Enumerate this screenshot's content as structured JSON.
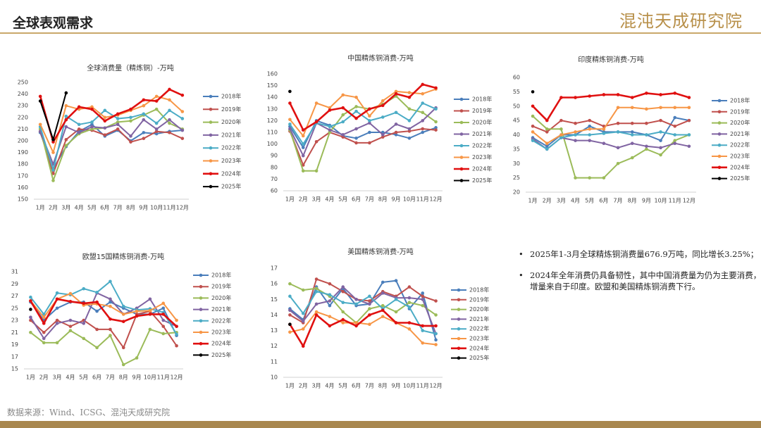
{
  "header": {
    "title": "全球表观需求",
    "logo": "混沌天成研究院"
  },
  "notes": [
    "2025年1-3月全球精炼铜消费量676.9万吨，同比增长3.25%；",
    "2024年全年消费仍具备韧性，其中中国消费量为仍为主要消费，增量来自于印度。欧盟和美国精炼铜消费下行。"
  ],
  "source": "数据来源：Wind、ICSG、混沌天成研究院",
  "chart_data": [
    {
      "type": "line",
      "title": "全球消费量（精炼铜）-万吨",
      "grid": false,
      "categories": [
        "1月",
        "2月",
        "3月",
        "4月",
        "5月",
        "6月",
        "7月",
        "8月",
        "9月",
        "10月",
        "11月",
        "12月"
      ],
      "ylim": [
        150,
        250
      ],
      "yticks": [
        150,
        160,
        170,
        180,
        190,
        200,
        210,
        220,
        230,
        240,
        250
      ],
      "series": [
        {
          "name": "2018年",
          "color": "#4a7ebb",
          "values": [
            207,
            176,
            195,
            208,
            214,
            204,
            209,
            200,
            207,
            206,
            208,
            209
          ]
        },
        {
          "name": "2019年",
          "color": "#c0504d",
          "values": [
            208,
            172,
            201,
            210,
            209,
            205,
            210,
            199,
            202,
            208,
            207,
            202
          ]
        },
        {
          "name": "2020年",
          "color": "#9bbb59",
          "values": [
            210,
            166,
            196,
            206,
            210,
            211,
            216,
            217,
            222,
            227,
            215,
            210
          ]
        },
        {
          "name": "2021年",
          "color": "#8064a2",
          "values": [
            208,
            180,
            212,
            207,
            212,
            211,
            214,
            204,
            218,
            210,
            218,
            209
          ]
        },
        {
          "name": "2022年",
          "color": "#4bacc6",
          "values": [
            212,
            175,
            221,
            214,
            216,
            226,
            219,
            220,
            223,
            215,
            226,
            219
          ]
        },
        {
          "name": "2023年",
          "color": "#f79646",
          "values": [
            214,
            190,
            230,
            227,
            229,
            220,
            222,
            226,
            230,
            238,
            235,
            225
          ]
        },
        {
          "name": "2024年",
          "color": "#e01010",
          "values": [
            238,
            199,
            218,
            229,
            227,
            217,
            223,
            227,
            235,
            234,
            244,
            239
          ]
        },
        {
          "name": "2025年",
          "color": "#000000",
          "values": [
            234,
            201,
            241,
            null,
            null,
            null,
            null,
            null,
            null,
            null,
            null,
            null
          ]
        }
      ]
    },
    {
      "type": "line",
      "title": "中国精炼铜消费-万吨",
      "grid": false,
      "categories": [
        "1月",
        "2月",
        "3月",
        "4月",
        "5月",
        "6月",
        "7月",
        "8月",
        "9月",
        "10月",
        "11月",
        "12月"
      ],
      "ylim": [
        60,
        160
      ],
      "yticks": [
        60,
        70,
        80,
        90,
        100,
        110,
        120,
        130,
        140,
        150,
        160
      ],
      "series": [
        {
          "name": "2018年",
          "color": "#4a7ebb",
          "values": [
            115,
            97,
            120,
            116,
            107,
            105,
            110,
            110,
            108,
            105,
            110,
            114
          ]
        },
        {
          "name": "2019年",
          "color": "#c0504d",
          "values": [
            111,
            82,
            102,
            110,
            106,
            101,
            101,
            106,
            110,
            111,
            113,
            112
          ]
        },
        {
          "name": "2020年",
          "color": "#9bbb59",
          "values": [
            112,
            77,
            77,
            110,
            125,
            132,
            130,
            134,
            141,
            130,
            127,
            119
          ]
        },
        {
          "name": "2021年",
          "color": "#8064a2",
          "values": [
            113,
            90,
            118,
            112,
            108,
            113,
            118,
            108,
            117,
            113,
            120,
            131
          ]
        },
        {
          "name": "2022年",
          "color": "#4bacc6",
          "values": [
            117,
            100,
            118,
            115,
            119,
            128,
            120,
            123,
            127,
            120,
            135,
            130
          ]
        },
        {
          "name": "2023年",
          "color": "#f79646",
          "values": [
            121,
            107,
            135,
            131,
            142,
            140,
            124,
            137,
            145,
            144,
            143,
            147
          ]
        },
        {
          "name": "2024年",
          "color": "#e01010",
          "values": [
            135,
            112,
            119,
            129,
            131,
            122,
            130,
            133,
            143,
            140,
            151,
            148
          ]
        },
        {
          "name": "2025年",
          "color": "#000000",
          "values": [
            145,
            null,
            null,
            null,
            null,
            null,
            null,
            null,
            null,
            null,
            null,
            null
          ]
        }
      ]
    },
    {
      "type": "line",
      "title": "印度精炼铜消费-万吨",
      "grid": false,
      "categories": [
        "1月",
        "2月",
        "3月",
        "4月",
        "5月",
        "6月",
        "7月",
        "8月",
        "9月",
        "10月",
        "11月",
        "12月"
      ],
      "ylim": [
        20,
        60
      ],
      "yticks": [
        20,
        25,
        30,
        35,
        40,
        45,
        50,
        55,
        60
      ],
      "series": [
        {
          "name": "2018年",
          "color": "#4a7ebb",
          "values": [
            39,
            36,
            40,
            40,
            43,
            41,
            41,
            41,
            40,
            38,
            46,
            45
          ]
        },
        {
          "name": "2019年",
          "color": "#c0504d",
          "values": [
            43,
            41,
            45,
            44,
            45,
            43,
            44,
            44,
            44,
            45,
            43,
            45
          ]
        },
        {
          "name": "2020年",
          "color": "#9bbb59",
          "values": [
            46.5,
            42,
            42,
            25,
            25,
            25,
            30,
            32,
            35,
            33,
            38,
            40
          ]
        },
        {
          "name": "2021年",
          "color": "#8064a2",
          "values": [
            38.5,
            35,
            39,
            38,
            38,
            37,
            35.5,
            37,
            36,
            35.5,
            37,
            36
          ]
        },
        {
          "name": "2022年",
          "color": "#4bacc6",
          "values": [
            38,
            35,
            39,
            40,
            40,
            40.5,
            41,
            40,
            40,
            41,
            40,
            40
          ]
        },
        {
          "name": "2023年",
          "color": "#f79646",
          "values": [
            41,
            37,
            40,
            41,
            42,
            42,
            49.5,
            49.5,
            49,
            49.5,
            49.5,
            49.5
          ]
        },
        {
          "name": "2024年",
          "color": "#e01010",
          "values": [
            50,
            45,
            53,
            53,
            53.5,
            54,
            54,
            53,
            54.5,
            54,
            54.5,
            53
          ]
        },
        {
          "name": "2025年",
          "color": "#000000",
          "values": [
            55,
            null,
            null,
            null,
            null,
            null,
            null,
            null,
            null,
            null,
            null,
            null
          ]
        }
      ]
    },
    {
      "type": "line",
      "title": "欧盟15国精炼铜消费-万吨",
      "grid": false,
      "categories": [
        "1月",
        "2月",
        "3月",
        "4月",
        "5月",
        "6月",
        "7月",
        "8月",
        "9月",
        "10月",
        "11月",
        "12月"
      ],
      "ylim": [
        15,
        31
      ],
      "yticks": [
        15,
        17,
        19,
        21,
        23,
        25,
        27,
        29,
        31
      ],
      "series": [
        {
          "name": "2018年",
          "color": "#4a7ebb",
          "values": [
            26,
            23,
            25,
            26,
            26,
            24.5,
            26,
            25,
            24,
            24,
            25,
            20.5
          ]
        },
        {
          "name": "2019年",
          "color": "#c0504d",
          "values": [
            23,
            21,
            23,
            22,
            23,
            21.5,
            21.5,
            18.5,
            24,
            24.5,
            22,
            18.8
          ]
        },
        {
          "name": "2020年",
          "color": "#9bbb59",
          "values": [
            21,
            19.3,
            19.3,
            21.3,
            20,
            18.5,
            20.5,
            15.7,
            16.8,
            21.5,
            20.8,
            21
          ]
        },
        {
          "name": "2021年",
          "color": "#8064a2",
          "values": [
            23.5,
            20,
            22.5,
            23,
            22.5,
            27.5,
            26.5,
            24,
            25,
            26.5,
            23,
            22
          ]
        },
        {
          "name": "2022年",
          "color": "#4bacc6",
          "values": [
            26.8,
            24,
            27.5,
            27.2,
            28.2,
            27.6,
            29.4,
            25.3,
            24.7,
            24.9,
            24.3,
            20.7
          ]
        },
        {
          "name": "2023年",
          "color": "#f79646",
          "values": [
            26.2,
            23.5,
            26.5,
            27.4,
            25.5,
            25.7,
            25.3,
            24,
            24.5,
            24.6,
            25.8,
            23
          ]
        },
        {
          "name": "2024年",
          "color": "#e01010",
          "values": [
            26.2,
            22.5,
            26.5,
            26.1,
            25.8,
            26,
            23.2,
            22.8,
            23.7,
            24,
            24,
            22
          ]
        },
        {
          "name": "2025年",
          "color": "#000000",
          "values": [
            24.8,
            null,
            null,
            null,
            null,
            null,
            null,
            null,
            null,
            null,
            null,
            null
          ]
        }
      ]
    },
    {
      "type": "line",
      "title": "美国精炼铜消费-万吨",
      "grid": false,
      "categories": [
        "1月",
        "2月",
        "3月",
        "4月",
        "5月",
        "6月",
        "7月",
        "8月",
        "9月",
        "10月",
        "11月",
        "12月"
      ],
      "ylim": [
        10,
        17
      ],
      "yticks": [
        10,
        11,
        12,
        13,
        14,
        15,
        16,
        17
      ],
      "series": [
        {
          "name": "2018年",
          "color": "#4a7ebb",
          "values": [
            14.4,
            13.7,
            15.8,
            14.6,
            15.7,
            14.6,
            14.7,
            16.1,
            16.2,
            14.4,
            15.4,
            12.4
          ]
        },
        {
          "name": "2019年",
          "color": "#c0504d",
          "values": [
            14,
            13.5,
            16.3,
            16,
            15.5,
            15,
            14.9,
            15.5,
            15.2,
            15.8,
            15.2,
            14.9
          ]
        },
        {
          "name": "2020年",
          "color": "#9bbb59",
          "values": [
            16,
            15.6,
            15.7,
            15.2,
            14.2,
            13.5,
            14.4,
            14.6,
            14.2,
            14.8,
            14.6,
            14
          ]
        },
        {
          "name": "2021年",
          "color": "#8064a2",
          "values": [
            14.3,
            13.6,
            14.7,
            14.9,
            15.8,
            15,
            14.7,
            15.4,
            15.1,
            15.1,
            15,
            12.8
          ]
        },
        {
          "name": "2022年",
          "color": "#4bacc6",
          "values": [
            15.2,
            14.1,
            15.5,
            15.3,
            14.8,
            14.7,
            15.2,
            14.4,
            15,
            14.5,
            13,
            12.8
          ]
        },
        {
          "name": "2023年",
          "color": "#f79646",
          "values": [
            12.9,
            13.1,
            14.2,
            13.9,
            13.5,
            13.5,
            13.4,
            13.9,
            13.5,
            13.1,
            12.2,
            12.1
          ]
        },
        {
          "name": "2024年",
          "color": "#e01010",
          "values": [
            13.4,
            12,
            14,
            13.3,
            13.7,
            13.3,
            14,
            14.3,
            13.5,
            13.5,
            13.3,
            13.3
          ]
        },
        {
          "name": "2025年",
          "color": "#000000",
          "values": [
            13.4,
            null,
            null,
            null,
            null,
            null,
            null,
            null,
            null,
            null,
            null,
            null
          ]
        }
      ]
    }
  ]
}
